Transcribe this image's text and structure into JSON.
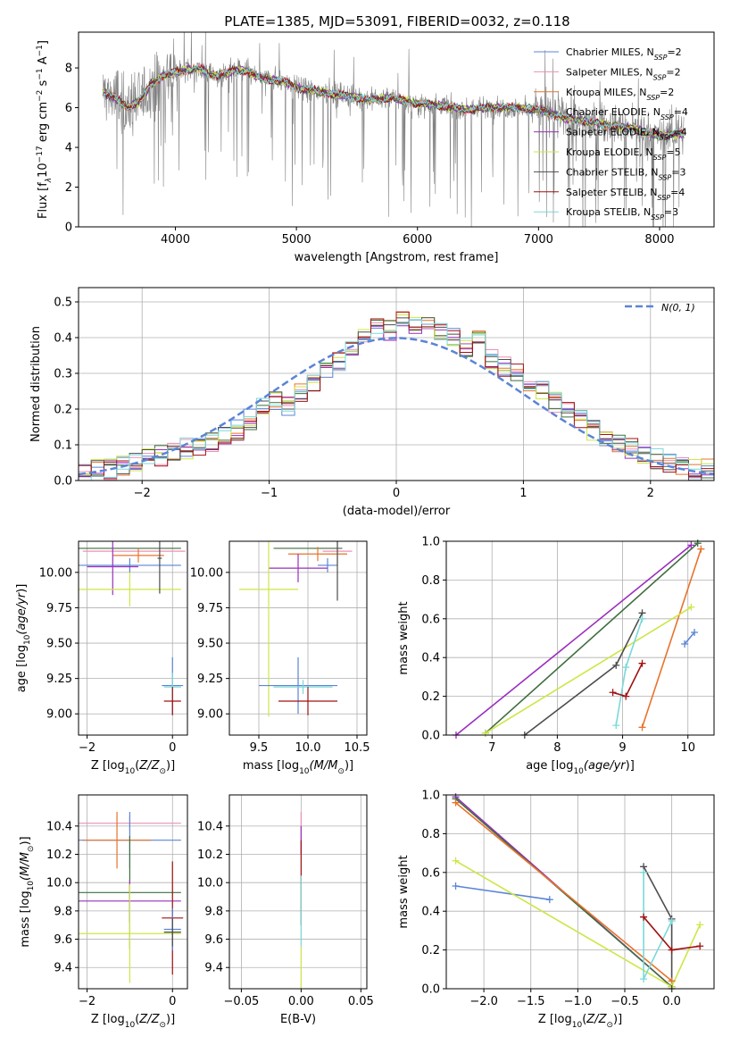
{
  "figure": {
    "title": "PLATE=1385, MJD=53091, FIBERID=0032, z=0.118"
  },
  "chart_data": [
    {
      "id": "spectrum",
      "type": "line",
      "xlabel": "wavelength [Angstrom, rest frame]",
      "ylabel": "Flux [f_λ 10^-17 erg cm^-2 s^-1 A^-1]",
      "xlim": [
        3200,
        8450
      ],
      "ylim": [
        0,
        9.8
      ],
      "xticks": [
        4000,
        5000,
        6000,
        7000,
        8000
      ],
      "yticks": [
        0,
        2,
        4,
        6,
        8
      ],
      "grid": false,
      "legend_position": "top-right",
      "continuum": {
        "x": [
          3400,
          3500,
          3600,
          3700,
          3800,
          3900,
          4000,
          4100,
          4200,
          4300,
          4400,
          4500,
          4600,
          4700,
          4800,
          4900,
          5000,
          5200,
          5400,
          5600,
          5800,
          6000,
          6200,
          6400,
          6600,
          6800,
          7000,
          7200,
          7400,
          7600,
          7800,
          8000,
          8200
        ],
        "y": [
          6.8,
          6.5,
          6.0,
          6.3,
          7.2,
          7.6,
          7.8,
          7.9,
          8.0,
          7.6,
          7.7,
          7.9,
          7.8,
          7.5,
          7.4,
          7.3,
          7.0,
          6.8,
          6.6,
          6.4,
          6.5,
          6.2,
          6.1,
          5.9,
          6.0,
          6.0,
          5.9,
          5.5,
          5.3,
          5.1,
          4.9,
          4.6,
          4.7
        ]
      },
      "series": [
        {
          "name": "Chabrier MILES",
          "nssp": "2",
          "color": "#5b84d6"
        },
        {
          "name": "Salpeter MILES",
          "nssp": "2",
          "color": "#ec8fb7"
        },
        {
          "name": "Kroupa MILES",
          "nssp": "2",
          "color": "#e8732c"
        },
        {
          "name": "Chabrier ELODIE",
          "nssp": "4",
          "color": "#3f6e3f"
        },
        {
          "name": "Salpeter ELODIE",
          "nssp": "4",
          "color": "#9a2fbd"
        },
        {
          "name": "Kroupa ELODIE",
          "nssp": "5",
          "color": "#cde646"
        },
        {
          "name": "Chabrier STELIB",
          "nssp": "3",
          "color": "#4d4d4d"
        },
        {
          "name": "Salpeter STELIB",
          "nssp": "4",
          "color": "#a01010"
        },
        {
          "name": "Kroupa STELIB",
          "nssp": "3",
          "color": "#7bd8d8"
        }
      ],
      "data_color": "#808080"
    },
    {
      "id": "residuals",
      "type": "line",
      "xlabel": "(data-model)/error",
      "ylabel": "Normed distribution",
      "xlim": [
        -2.5,
        2.5
      ],
      "ylim": [
        0,
        0.54
      ],
      "xticks": [
        -2,
        -1,
        0,
        1,
        2
      ],
      "yticks": [
        0.0,
        0.1,
        0.2,
        0.3,
        0.4,
        0.5
      ],
      "grid": true,
      "legend_position": "top-right",
      "legend_label": "N(0, 1)",
      "gaussian_color": "#5b84d6",
      "histogram_bin_edges": [
        -2.5,
        -2.4,
        -2.3,
        -2.2,
        -2.1,
        -2.0,
        -1.9,
        -1.8,
        -1.7,
        -1.6,
        -1.5,
        -1.4,
        -1.3,
        -1.2,
        -1.1,
        -1.0,
        -0.9,
        -0.8,
        -0.7,
        -0.6,
        -0.5,
        -0.4,
        -0.3,
        -0.2,
        -0.1,
        0.0,
        0.1,
        0.2,
        0.3,
        0.4,
        0.5,
        0.6,
        0.7,
        0.8,
        0.9,
        1.0,
        1.1,
        1.2,
        1.3,
        1.4,
        1.5,
        1.6,
        1.7,
        1.8,
        1.9,
        2.0,
        2.1,
        2.2,
        2.3,
        2.4,
        2.5
      ],
      "histogram_mean_heights": [
        0.02,
        0.03,
        0.03,
        0.04,
        0.05,
        0.06,
        0.07,
        0.08,
        0.09,
        0.1,
        0.11,
        0.12,
        0.14,
        0.17,
        0.2,
        0.22,
        0.21,
        0.25,
        0.28,
        0.31,
        0.33,
        0.36,
        0.4,
        0.44,
        0.42,
        0.46,
        0.43,
        0.44,
        0.42,
        0.4,
        0.37,
        0.39,
        0.34,
        0.32,
        0.3,
        0.27,
        0.25,
        0.22,
        0.2,
        0.17,
        0.14,
        0.12,
        0.1,
        0.09,
        0.07,
        0.06,
        0.05,
        0.04,
        0.03,
        0.03
      ]
    },
    {
      "id": "age_vs_Z",
      "type": "scatter",
      "xlabel": "Z [log10(Z/Z_sun)]",
      "ylabel": "age [log10(age/yr)]",
      "xlim": [
        -2.2,
        0.35
      ],
      "ylim": [
        8.85,
        10.22
      ],
      "xticks": [
        -2,
        0
      ],
      "yticks": [
        9.0,
        9.25,
        9.5,
        9.75,
        10.0
      ],
      "grid": true,
      "points": [
        {
          "x": -1.0,
          "y": 10.17,
          "xerr": 1.2,
          "yerr": 0.0,
          "color": "#3f6e3f"
        },
        {
          "x": -0.9,
          "y": 10.15,
          "xerr": 1.2,
          "yerr": 0.0,
          "color": "#ec8fb7"
        },
        {
          "x": -0.8,
          "y": 10.12,
          "xerr": 0.6,
          "yerr": 0.05,
          "color": "#e8732c"
        },
        {
          "x": -1.0,
          "y": 10.05,
          "xerr": 1.2,
          "yerr": 0.05,
          "color": "#5b84d6"
        },
        {
          "x": -1.4,
          "y": 10.04,
          "xerr": 0.6,
          "yerr": 0.2,
          "color": "#9a2fbd"
        },
        {
          "x": -1.0,
          "y": 9.88,
          "xerr": 1.2,
          "yerr": 0.12,
          "color": "#cde646"
        },
        {
          "x": -0.3,
          "y": 10.1,
          "xerr": 0.05,
          "yerr": 0.25,
          "color": "#4d4d4d"
        },
        {
          "x": 0.0,
          "y": 9.2,
          "xerr": 0.25,
          "yerr": 0.2,
          "color": "#5b84d6"
        },
        {
          "x": 0.0,
          "y": 9.19,
          "xerr": 0.2,
          "yerr": 0.1,
          "color": "#7bd8d8"
        },
        {
          "x": 0.0,
          "y": 9.09,
          "xerr": 0.2,
          "yerr": 0.1,
          "color": "#a01010"
        }
      ]
    },
    {
      "id": "age_vs_mass",
      "type": "scatter",
      "xlabel": "mass [log10(M/M_sun)]",
      "ylabel": "",
      "xlim": [
        9.2,
        10.6
      ],
      "ylim": [
        8.85,
        10.22
      ],
      "xticks": [
        9.5,
        10.0,
        10.5
      ],
      "yticks": [
        9.0,
        9.25,
        9.5,
        9.75,
        10.0
      ],
      "grid": true,
      "points": [
        {
          "x": 10.0,
          "y": 10.17,
          "xerr": 0.35,
          "yerr": 0.0,
          "color": "#3f6e3f"
        },
        {
          "x": 10.3,
          "y": 10.15,
          "xerr": 0.15,
          "yerr": 0.1,
          "color": "#ec8fb7"
        },
        {
          "x": 10.1,
          "y": 10.13,
          "xerr": 0.3,
          "yerr": 0.05,
          "color": "#e8732c"
        },
        {
          "x": 10.2,
          "y": 10.05,
          "xerr": 0.1,
          "yerr": 0.05,
          "color": "#5b84d6"
        },
        {
          "x": 9.9,
          "y": 10.03,
          "xerr": 0.3,
          "yerr": 0.1,
          "color": "#9a2fbd"
        },
        {
          "x": 9.6,
          "y": 9.88,
          "xerr": 0.3,
          "yerr": 0.9,
          "color": "#cde646"
        },
        {
          "x": 10.3,
          "y": 10.1,
          "xerr": 0.0,
          "yerr": 0.3,
          "color": "#4d4d4d"
        },
        {
          "x": 9.9,
          "y": 9.2,
          "xerr": 0.4,
          "yerr": 0.2,
          "color": "#5b84d6"
        },
        {
          "x": 9.95,
          "y": 9.19,
          "xerr": 0.3,
          "yerr": 0.05,
          "color": "#7bd8d8"
        },
        {
          "x": 10.0,
          "y": 9.09,
          "xerr": 0.3,
          "yerr": 0.1,
          "color": "#a01010"
        }
      ]
    },
    {
      "id": "weight_vs_age",
      "type": "line",
      "xlabel": "age [log10(age/yr)]",
      "ylabel": "mass weight",
      "xlim": [
        6.3,
        10.4
      ],
      "ylim": [
        0.0,
        1.0
      ],
      "xticks": [
        7,
        8,
        9,
        10
      ],
      "yticks": [
        0.0,
        0.2,
        0.4,
        0.6,
        0.8,
        1.0
      ],
      "grid": true,
      "series": [
        {
          "color": "#9a2fbd",
          "x": [
            6.45,
            10.05
          ],
          "y": [
            0.0,
            0.98
          ]
        },
        {
          "color": "#3f6e3f",
          "x": [
            6.9,
            10.15
          ],
          "y": [
            0.01,
            0.99
          ]
        },
        {
          "color": "#e8732c",
          "x": [
            9.3,
            10.2
          ],
          "y": [
            0.04,
            0.96
          ]
        },
        {
          "color": "#cde646",
          "x": [
            6.9,
            10.05
          ],
          "y": [
            0.01,
            0.66
          ]
        },
        {
          "color": "#4d4d4d",
          "x": [
            7.5,
            8.9,
            9.3
          ],
          "y": [
            0.0,
            0.36,
            0.63
          ]
        },
        {
          "color": "#7bd8d8",
          "x": [
            8.9,
            9.05,
            9.3
          ],
          "y": [
            0.05,
            0.35,
            0.6
          ]
        },
        {
          "color": "#a01010",
          "x": [
            8.85,
            9.05,
            9.3
          ],
          "y": [
            0.22,
            0.2,
            0.37
          ]
        },
        {
          "color": "#5b84d6",
          "x": [
            9.95,
            10.1
          ],
          "y": [
            0.47,
            0.53
          ]
        }
      ]
    },
    {
      "id": "mass_vs_Z",
      "type": "scatter",
      "xlabel": "Z [log10(Z/Z_sun)]",
      "ylabel": "mass [log10(M/M_sun)]",
      "xlim": [
        -2.2,
        0.35
      ],
      "ylim": [
        9.25,
        10.62
      ],
      "xticks": [
        -2,
        0
      ],
      "yticks": [
        9.4,
        9.6,
        9.8,
        10.0,
        10.2,
        10.4
      ],
      "grid": true,
      "points": [
        {
          "x": -1.0,
          "y": 10.42,
          "xerr": 1.2,
          "yerr": 0.05,
          "color": "#ec8fb7"
        },
        {
          "x": -1.0,
          "y": 10.3,
          "xerr": 1.2,
          "yerr": 0.2,
          "color": "#5b84d6"
        },
        {
          "x": -1.3,
          "y": 10.3,
          "xerr": 0.8,
          "yerr": 0.2,
          "color": "#e8732c"
        },
        {
          "x": -1.0,
          "y": 9.93,
          "xerr": 1.2,
          "yerr": 0.4,
          "color": "#3f6e3f"
        },
        {
          "x": -1.0,
          "y": 9.87,
          "xerr": 1.2,
          "yerr": 0.15,
          "color": "#9a2fbd"
        },
        {
          "x": -1.0,
          "y": 9.64,
          "xerr": 1.2,
          "yerr": 0.35,
          "color": "#cde646"
        },
        {
          "x": 0.0,
          "y": 9.75,
          "xerr": 0.25,
          "yerr": 0.4,
          "color": "#a01010"
        },
        {
          "x": 0.0,
          "y": 9.67,
          "xerr": 0.2,
          "yerr": 0.15,
          "color": "#5b84d6"
        },
        {
          "x": 0.0,
          "y": 9.65,
          "xerr": 0.2,
          "yerr": 0.1,
          "color": "#4d4d4d"
        }
      ]
    },
    {
      "id": "mass_vs_EBV",
      "type": "scatter",
      "xlabel": "E(B-V)",
      "ylabel": "",
      "xlim": [
        -0.06,
        0.055
      ],
      "ylim": [
        9.25,
        10.62
      ],
      "xticks": [
        -0.05,
        0.0,
        0.05
      ],
      "xtick_labels": [
        "−0.05",
        "0.00",
        "0.05"
      ],
      "yticks": [
        9.4,
        9.6,
        9.8,
        10.0,
        10.2,
        10.4
      ],
      "grid": true,
      "points": [
        {
          "x": 0.0,
          "y": 10.4,
          "yerr": 0.1,
          "color": "#ec8fb7"
        },
        {
          "x": 0.0,
          "y": 10.3,
          "yerr": 0.1,
          "color": "#9a2fbd"
        },
        {
          "x": 0.0,
          "y": 10.0,
          "yerr": 0.3,
          "color": "#a01010"
        },
        {
          "x": 0.0,
          "y": 9.8,
          "yerr": 0.25,
          "color": "#7bd8d8"
        },
        {
          "x": 0.0,
          "y": 9.4,
          "yerr": 0.15,
          "color": "#cde646"
        }
      ]
    },
    {
      "id": "weight_vs_Z",
      "type": "line",
      "xlabel": "Z [log10(Z/Z_sun)]",
      "ylabel": "mass weight",
      "xlim": [
        -2.4,
        0.45
      ],
      "ylim": [
        0.0,
        1.0
      ],
      "xticks": [
        -2.0,
        -1.5,
        -1.0,
        -0.5,
        0.0
      ],
      "yticks": [
        0.0,
        0.2,
        0.4,
        0.6,
        0.8,
        1.0
      ],
      "grid": true,
      "series": [
        {
          "color": "#5b84d6",
          "x": [
            -2.3,
            -1.3
          ],
          "y": [
            0.53,
            0.46
          ]
        },
        {
          "color": "#9a2fbd",
          "x": [
            -2.3,
            0.0
          ],
          "y": [
            0.99,
            0.01
          ]
        },
        {
          "color": "#3f6e3f",
          "x": [
            -2.3,
            0.0
          ],
          "y": [
            0.98,
            0.01
          ]
        },
        {
          "color": "#e8732c",
          "x": [
            -2.3,
            0.0
          ],
          "y": [
            0.96,
            0.04
          ]
        },
        {
          "color": "#cde646",
          "x": [
            -2.3,
            0.0,
            0.3
          ],
          "y": [
            0.66,
            0.01,
            0.33
          ]
        },
        {
          "color": "#4d4d4d",
          "x": [
            -0.3,
            0.0,
            0.0
          ],
          "y": [
            0.63,
            0.36,
            0.0
          ]
        },
        {
          "color": "#7bd8d8",
          "x": [
            -0.3,
            -0.3,
            0.0
          ],
          "y": [
            0.6,
            0.05,
            0.35
          ]
        },
        {
          "color": "#a01010",
          "x": [
            -0.3,
            0.0,
            0.3
          ],
          "y": [
            0.37,
            0.2,
            0.22
          ]
        }
      ]
    }
  ]
}
